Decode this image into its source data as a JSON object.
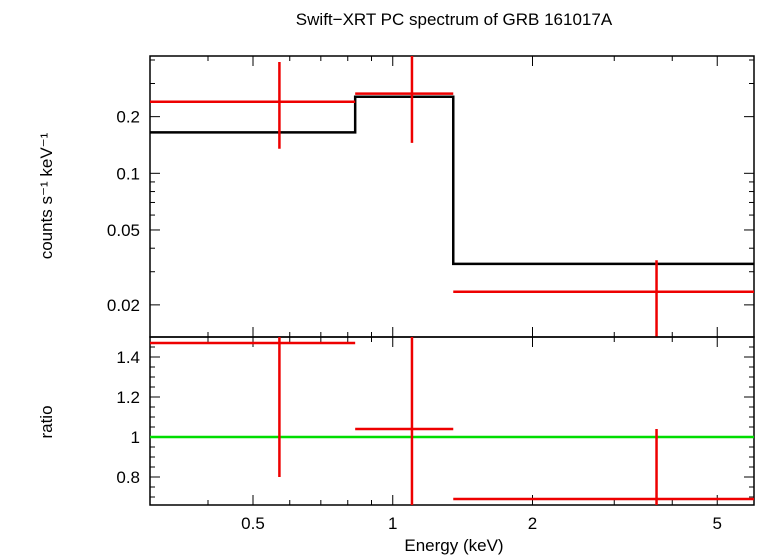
{
  "chart_data": [
    {
      "type": "step",
      "title": "Swift−XRT PC spectrum of GRB 161017A",
      "ylabel": "counts s⁻¹ keV⁻¹",
      "xlabel": "",
      "xscale": "log",
      "yscale": "log",
      "xlim": [
        0.3,
        6.0
      ],
      "ylim": [
        0.0135,
        0.42
      ],
      "yticks": [
        0.02,
        0.05,
        0.1,
        0.2
      ],
      "ytick_labels": [
        "0.02",
        "0.05",
        "0.1",
        "0.2"
      ],
      "data_points": {
        "name": "data",
        "color": "#ee0000",
        "points": [
          {
            "x": 0.57,
            "xlo": 0.3,
            "xhi": 0.83,
            "y": 0.24,
            "ylo": 0.135,
            "yhi": 0.39
          },
          {
            "x": 1.1,
            "xlo": 0.83,
            "xhi": 1.35,
            "y": 0.265,
            "ylo": 0.145,
            "yhi": 0.42
          },
          {
            "x": 3.7,
            "xlo": 1.35,
            "xhi": 6.0,
            "y": 0.0235,
            "ylo": 0.0135,
            "yhi": 0.0345
          }
        ]
      },
      "model": {
        "name": "model",
        "color": "#000000",
        "bins": [
          {
            "xlo": 0.3,
            "xhi": 0.83,
            "y": 0.165
          },
          {
            "xlo": 0.83,
            "xhi": 1.35,
            "y": 0.255
          },
          {
            "xlo": 1.35,
            "xhi": 6.0,
            "y": 0.033
          }
        ]
      }
    },
    {
      "type": "scatter",
      "title": "",
      "ylabel": "ratio",
      "xlabel": "Energy (keV)",
      "xscale": "log",
      "yscale": "linear",
      "xlim": [
        0.3,
        6.0
      ],
      "ylim": [
        0.66,
        1.5
      ],
      "yticks": [
        0.8,
        1,
        1.2,
        1.4
      ],
      "ytick_labels": [
        "0.8",
        "1",
        "1.2",
        "1.4"
      ],
      "xticks": [
        0.5,
        1,
        2,
        5
      ],
      "xtick_labels": [
        "0.5",
        "1",
        "2",
        "5"
      ],
      "reference_line": {
        "y": 1,
        "color": "#00dd00"
      },
      "data_points": {
        "name": "ratio",
        "color": "#ee0000",
        "points": [
          {
            "x": 0.57,
            "xlo": 0.3,
            "xhi": 0.83,
            "y": 1.47,
            "ylo": 0.8,
            "yhi": 1.5
          },
          {
            "x": 1.1,
            "xlo": 0.83,
            "xhi": 1.35,
            "y": 1.04,
            "ylo": 0.66,
            "yhi": 1.5
          },
          {
            "x": 3.7,
            "xlo": 1.35,
            "xhi": 6.0,
            "y": 0.69,
            "ylo": 0.66,
            "yhi": 1.04
          }
        ]
      }
    }
  ]
}
